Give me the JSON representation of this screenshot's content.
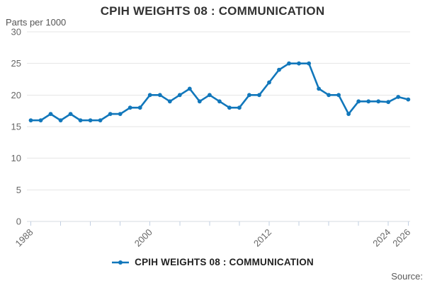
{
  "page": {
    "title": "CPIH WEIGHTS 08 : COMMUNICATION",
    "unit_label": "Parts per 1000",
    "source_label": "Source:"
  },
  "legend": {
    "items": [
      {
        "label": "CPIH WEIGHTS 08 : COMMUNICATION",
        "color": "#1177bb"
      }
    ]
  },
  "colors": {
    "line": "#1177bb",
    "grid": "#e6e6e6",
    "axis_line": "#d4dbe2",
    "tick": "#c2cfe2",
    "axis_text": "#666666",
    "title_text": "#333333",
    "muted_text": "#595959"
  },
  "chart_data": {
    "type": "line",
    "title": "CPIH WEIGHTS 08 : COMMUNICATION",
    "ylabel": "Parts per 1000",
    "x": [
      1988,
      1989,
      1990,
      1991,
      1992,
      1993,
      1994,
      1995,
      1996,
      1997,
      1998,
      1999,
      2000,
      2001,
      2002,
      2003,
      2004,
      2005,
      2006,
      2007,
      2008,
      2009,
      2010,
      2011,
      2012,
      2013,
      2014,
      2015,
      2016,
      2017,
      2018,
      2019,
      2020,
      2021,
      2022,
      2023,
      2024,
      2025,
      2026
    ],
    "series": [
      {
        "name": "CPIH WEIGHTS 08 : COMMUNICATION",
        "values": [
          16,
          16,
          17,
          16,
          17,
          16,
          16,
          16,
          17,
          17,
          18,
          18,
          20,
          20,
          19,
          20,
          21,
          19,
          20,
          19,
          18,
          18,
          20,
          20,
          22,
          24,
          25,
          25,
          25,
          21,
          20,
          20,
          17,
          19,
          19,
          19,
          18.9,
          19.7,
          19.3
        ]
      }
    ],
    "ylim": [
      0,
      30
    ],
    "yticks": [
      0,
      5,
      10,
      15,
      20,
      25,
      30
    ],
    "xticks": [
      1988,
      1991,
      1994,
      1997,
      2000,
      2003,
      2006,
      2009,
      2012,
      2015,
      2018,
      2021,
      2024,
      2026
    ],
    "xtick_labels_shown": [
      1988,
      2000,
      2012,
      2024,
      2026
    ],
    "grid": "horizontal",
    "legend_position": "bottom-center"
  }
}
